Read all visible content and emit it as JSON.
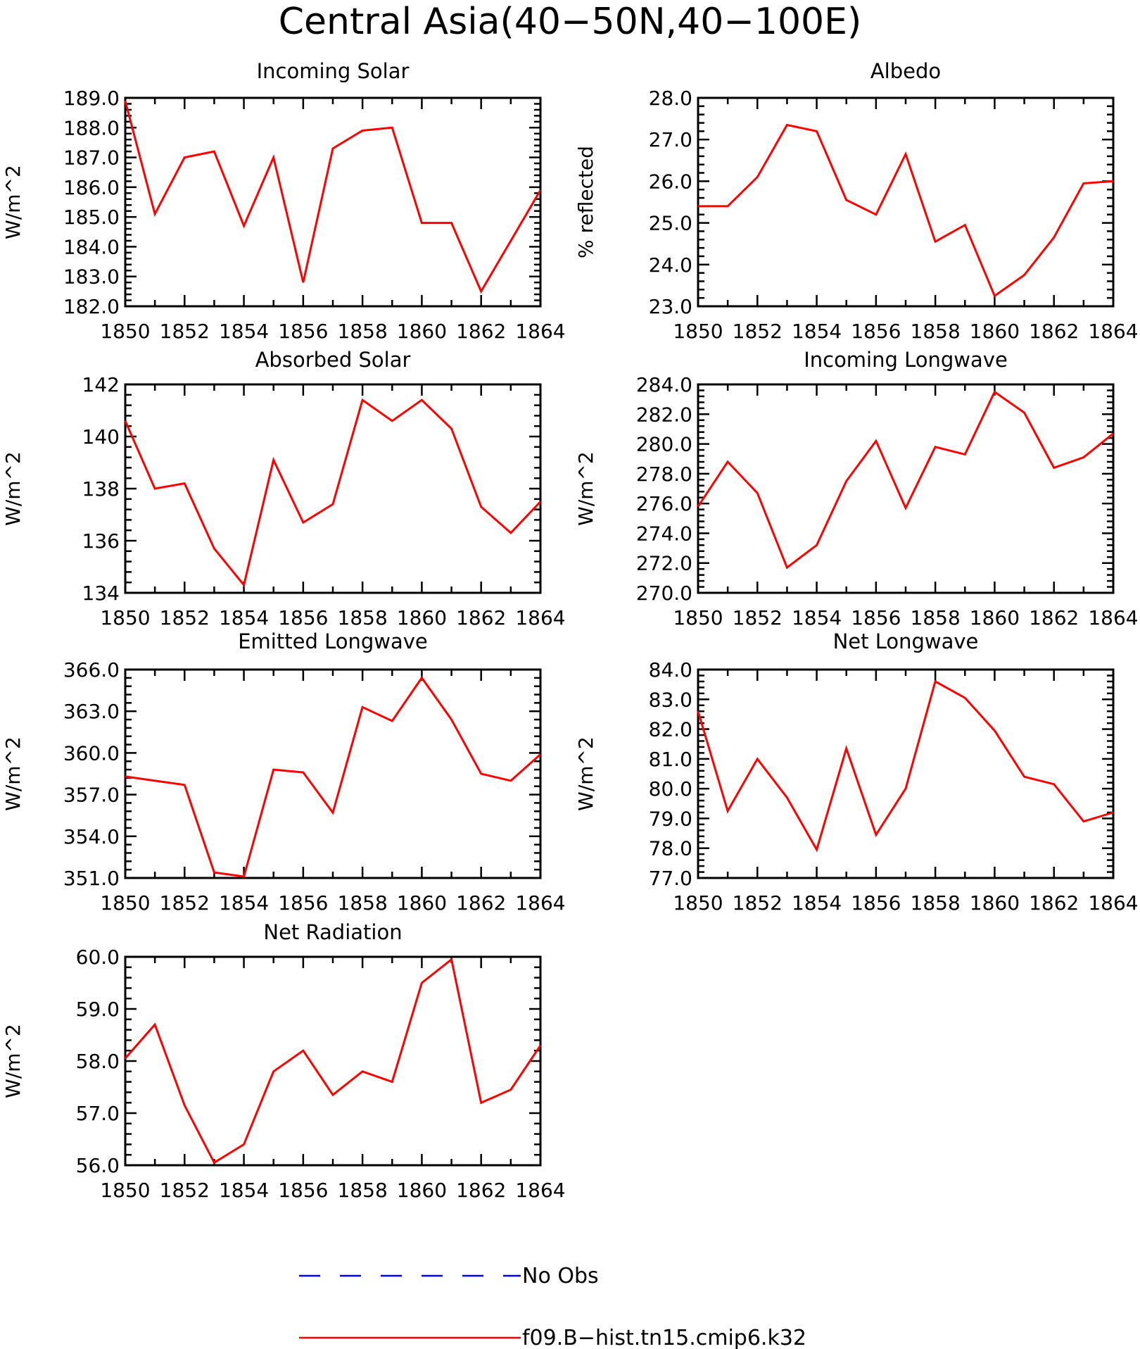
{
  "figure": {
    "title": "Central Asia(40−50N,40−100E)"
  },
  "legend": {
    "entries": [
      {
        "label": "No Obs",
        "color": "#0000ff",
        "style": "dashed"
      },
      {
        "label": "f09.B−hist.tn15.cmip6.k32",
        "color": "#ff0000",
        "style": "solid"
      }
    ]
  },
  "chart_data": [
    {
      "type": "line",
      "title": "Incoming Solar",
      "xlabel": "",
      "ylabel": "W/m^2",
      "xlim": [
        1850,
        1864
      ],
      "ylim": [
        182,
        189
      ],
      "xticks": [
        "1850",
        "1852",
        "1854",
        "1856",
        "1858",
        "1860",
        "1862",
        "1864"
      ],
      "yticks": [
        "182.0",
        "183.0",
        "184.0",
        "185.0",
        "186.0",
        "187.0",
        "188.0",
        "189.0"
      ],
      "x": [
        1850,
        1851,
        1852,
        1853,
        1854,
        1855,
        1856,
        1857,
        1858,
        1859,
        1860,
        1861,
        1862,
        1863,
        1864
      ],
      "series": [
        {
          "color": "#ff0000",
          "values": [
            188.9,
            185.1,
            187.0,
            187.2,
            184.7,
            187.0,
            182.8,
            187.3,
            187.9,
            188.0,
            184.8,
            184.8,
            182.5,
            184.2,
            185.9
          ]
        }
      ]
    },
    {
      "type": "line",
      "title": "Albedo",
      "xlabel": "",
      "ylabel": "% reflected",
      "xlim": [
        1850,
        1864
      ],
      "ylim": [
        23,
        28
      ],
      "xticks": [
        "1850",
        "1852",
        "1854",
        "1856",
        "1858",
        "1860",
        "1862",
        "1864"
      ],
      "yticks": [
        "23.0",
        "24.0",
        "25.0",
        "26.0",
        "27.0",
        "28.0"
      ],
      "x": [
        1850,
        1851,
        1852,
        1853,
        1854,
        1855,
        1856,
        1857,
        1858,
        1859,
        1860,
        1861,
        1862,
        1863,
        1864
      ],
      "series": [
        {
          "color": "#ff0000",
          "values": [
            25.4,
            25.4,
            26.1,
            27.35,
            27.2,
            25.55,
            25.2,
            26.65,
            24.55,
            24.95,
            23.25,
            23.75,
            24.65,
            25.95,
            26.0
          ]
        }
      ]
    },
    {
      "type": "line",
      "title": "Absorbed Solar",
      "xlabel": "",
      "ylabel": "W/m^2",
      "xlim": [
        1850,
        1864
      ],
      "ylim": [
        134,
        142
      ],
      "xticks": [
        "1850",
        "1852",
        "1854",
        "1856",
        "1858",
        "1860",
        "1862",
        "1864"
      ],
      "yticks": [
        "134",
        "136",
        "138",
        "140",
        "142"
      ],
      "x": [
        1850,
        1851,
        1852,
        1853,
        1854,
        1855,
        1856,
        1857,
        1858,
        1859,
        1860,
        1861,
        1862,
        1863,
        1864
      ],
      "series": [
        {
          "color": "#ff0000",
          "values": [
            140.6,
            138.0,
            138.2,
            135.7,
            134.3,
            139.1,
            136.7,
            137.4,
            141.4,
            140.6,
            141.4,
            140.3,
            137.3,
            136.3,
            137.5
          ]
        }
      ]
    },
    {
      "type": "line",
      "title": "Incoming Longwave",
      "xlabel": "",
      "ylabel": "W/m^2",
      "xlim": [
        1850,
        1864
      ],
      "ylim": [
        270,
        284
      ],
      "xticks": [
        "1850",
        "1852",
        "1854",
        "1856",
        "1858",
        "1860",
        "1862",
        "1864"
      ],
      "yticks": [
        "270.0",
        "272.0",
        "274.0",
        "276.0",
        "278.0",
        "280.0",
        "282.0",
        "284.0"
      ],
      "x": [
        1850,
        1851,
        1852,
        1853,
        1854,
        1855,
        1856,
        1857,
        1858,
        1859,
        1860,
        1861,
        1862,
        1863,
        1864
      ],
      "series": [
        {
          "color": "#ff0000",
          "values": [
            275.8,
            278.8,
            276.7,
            271.7,
            273.2,
            277.5,
            280.2,
            275.7,
            279.8,
            279.3,
            283.5,
            282.1,
            278.4,
            279.1,
            280.7
          ]
        }
      ]
    },
    {
      "type": "line",
      "title": "Emitted Longwave",
      "xlabel": "",
      "ylabel": "W/m^2",
      "xlim": [
        1850,
        1864
      ],
      "ylim": [
        351,
        366
      ],
      "xticks": [
        "1850",
        "1852",
        "1854",
        "1856",
        "1858",
        "1860",
        "1862",
        "1864"
      ],
      "yticks": [
        "351.0",
        "354.0",
        "357.0",
        "360.0",
        "363.0",
        "366.0"
      ],
      "x": [
        1850,
        1851,
        1852,
        1853,
        1854,
        1855,
        1856,
        1857,
        1858,
        1859,
        1860,
        1861,
        1862,
        1863,
        1864
      ],
      "series": [
        {
          "color": "#ff0000",
          "values": [
            358.3,
            358.0,
            357.7,
            351.4,
            351.1,
            358.8,
            358.6,
            355.7,
            363.3,
            362.3,
            365.4,
            362.4,
            358.5,
            358.0,
            359.9
          ]
        }
      ]
    },
    {
      "type": "line",
      "title": "Net Longwave",
      "xlabel": "",
      "ylabel": "W/m^2",
      "xlim": [
        1850,
        1864
      ],
      "ylim": [
        77,
        84
      ],
      "xticks": [
        "1850",
        "1852",
        "1854",
        "1856",
        "1858",
        "1860",
        "1862",
        "1864"
      ],
      "yticks": [
        "77.0",
        "78.0",
        "79.0",
        "80.0",
        "81.0",
        "82.0",
        "83.0",
        "84.0"
      ],
      "x": [
        1850,
        1851,
        1852,
        1853,
        1854,
        1855,
        1856,
        1857,
        1858,
        1859,
        1860,
        1861,
        1862,
        1863,
        1864
      ],
      "series": [
        {
          "color": "#ff0000",
          "values": [
            82.6,
            79.25,
            81.0,
            79.7,
            77.95,
            81.35,
            78.45,
            80.0,
            83.6,
            83.05,
            81.95,
            80.4,
            80.15,
            78.9,
            79.2
          ]
        }
      ]
    },
    {
      "type": "line",
      "title": "Net Radiation",
      "xlabel": "",
      "ylabel": "W/m^2",
      "xlim": [
        1850,
        1864
      ],
      "ylim": [
        56,
        60
      ],
      "xticks": [
        "1850",
        "1852",
        "1854",
        "1856",
        "1858",
        "1860",
        "1862",
        "1864"
      ],
      "yticks": [
        "56.0",
        "57.0",
        "58.0",
        "59.0",
        "60.0"
      ],
      "x": [
        1850,
        1851,
        1852,
        1853,
        1854,
        1855,
        1856,
        1857,
        1858,
        1859,
        1860,
        1861,
        1862,
        1863,
        1864
      ],
      "series": [
        {
          "color": "#ff0000",
          "values": [
            58.05,
            58.7,
            57.15,
            56.05,
            56.4,
            57.8,
            58.2,
            57.35,
            57.8,
            57.6,
            59.5,
            59.95,
            57.2,
            57.45,
            58.3
          ]
        }
      ]
    }
  ]
}
